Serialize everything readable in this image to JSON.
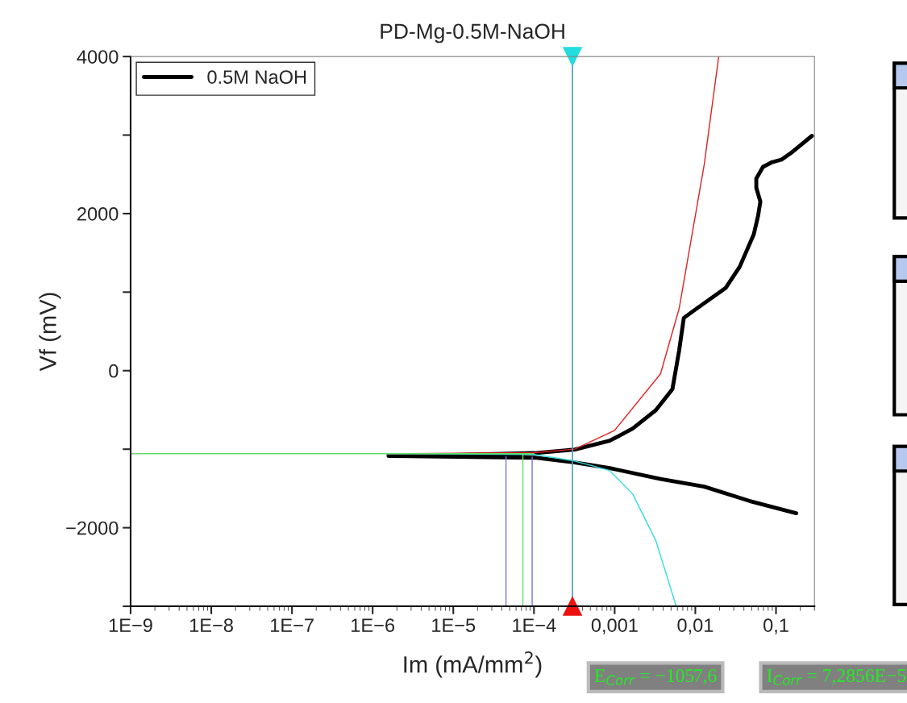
{
  "chart_data": {
    "type": "line",
    "title": "PD-Mg-0.5M-NaOH",
    "xlabel": "Im (mA/mm$^{2}$)",
    "ylabel": "Vf (mV)",
    "log": "x",
    "xlim": [
      1e-09,
      0.3
    ],
    "ylim": [
      -3000,
      4000
    ],
    "xticks": [
      {
        "value": 1e-09,
        "label": "1E−9"
      },
      {
        "value": 1e-08,
        "label": "1E−8"
      },
      {
        "value": 1e-07,
        "label": "1E−7"
      },
      {
        "value": 1e-06,
        "label": "1E−6"
      },
      {
        "value": 1e-05,
        "label": "1E−5"
      },
      {
        "value": 0.0001,
        "label": "1E−4"
      },
      {
        "value": 0.001,
        "label": "0,001"
      },
      {
        "value": 0.01,
        "label": "0,01"
      },
      {
        "value": 0.1,
        "label": "0,1"
      }
    ],
    "yticks": [
      {
        "value": -3000,
        "label": null
      },
      {
        "value": -2000,
        "label": "−2000"
      },
      {
        "value": -1000,
        "label": null
      },
      0,
      {
        "value": 1000,
        "label": null
      },
      2000,
      {
        "value": 3000,
        "label": null
      },
      4000
    ],
    "grid": false,
    "legend": "top left",
    "series": [
      {
        "name": "0.5M NaOH",
        "color": "#000000",
        "x": [
          0.178,
          0.0466,
          0.0129,
          0.0037,
          0.00087,
          0.00032,
          0.000103,
          1.57e-06,
          1e-05,
          0.0001,
          0.00032,
          0.00087,
          0.00167,
          0.00324,
          0.0052,
          0.0063,
          0.0072,
          0.0094,
          0.0239,
          0.0355,
          0.053,
          0.06,
          0.064,
          0.057,
          0.057,
          0.069,
          0.09,
          0.117,
          0.152,
          0.279
        ],
        "values": [
          -1815,
          -1658,
          -1477,
          -1380,
          -1241,
          -1169,
          -1108,
          -1085,
          -1075,
          -1050,
          -1005,
          -892,
          -738,
          -503,
          -236,
          256,
          671,
          759,
          1056,
          1323,
          1735,
          1972,
          2153,
          2328,
          2446,
          2595,
          2656,
          2687,
          2769,
          2990
        ]
      },
      {
        "type": "line",
        "color": "#e02020",
        "x": [
          1.5e-06,
          0.0001,
          0.00032,
          0.001,
          0.0037,
          0.0063,
          0.0129,
          0.0195
        ],
        "values": [
          -1060,
          -1045,
          -1000,
          -760,
          -41,
          790,
          2626,
          4000
        ]
      },
      {
        "type": "line",
        "color": "#33dddd",
        "x": [
          1.5e-06,
          0.0001,
          0.00032,
          0.00087,
          0.00167,
          0.00324,
          0.0058
        ],
        "values": [
          -1057,
          -1068,
          -1150,
          -1272,
          -1569,
          -2164,
          -3000
        ]
      },
      {
        "type": "line",
        "color": "#66dd66",
        "x": [
          1e-09,
          0.0001
        ],
        "values": [
          -1057.6,
          -1057.6
        ]
      },
      {
        "type": "line",
        "color": "#66dd66",
        "x": [
          7.2856e-05,
          7.2856e-05
        ],
        "values": [
          -3000,
          -1057.6
        ]
      },
      {
        "type": "line",
        "color": "#7777dd",
        "x": [
          4.5e-05,
          4.5e-05
        ],
        "values": [
          -3000,
          -1095
        ]
      },
      {
        "type": "line",
        "color": "#7777dd",
        "x": [
          9.5e-05,
          9.5e-05
        ],
        "values": [
          -3000,
          -1100
        ]
      }
    ],
    "ref_lines": [
      {
        "axis": "x",
        "value": 0.0003,
        "color": "#5599bb"
      }
    ],
    "annotations": [
      "E$_{Corr}$ = −1057,6",
      "I$_{Corr}$ = 7,2856E−5"
    ]
  }
}
